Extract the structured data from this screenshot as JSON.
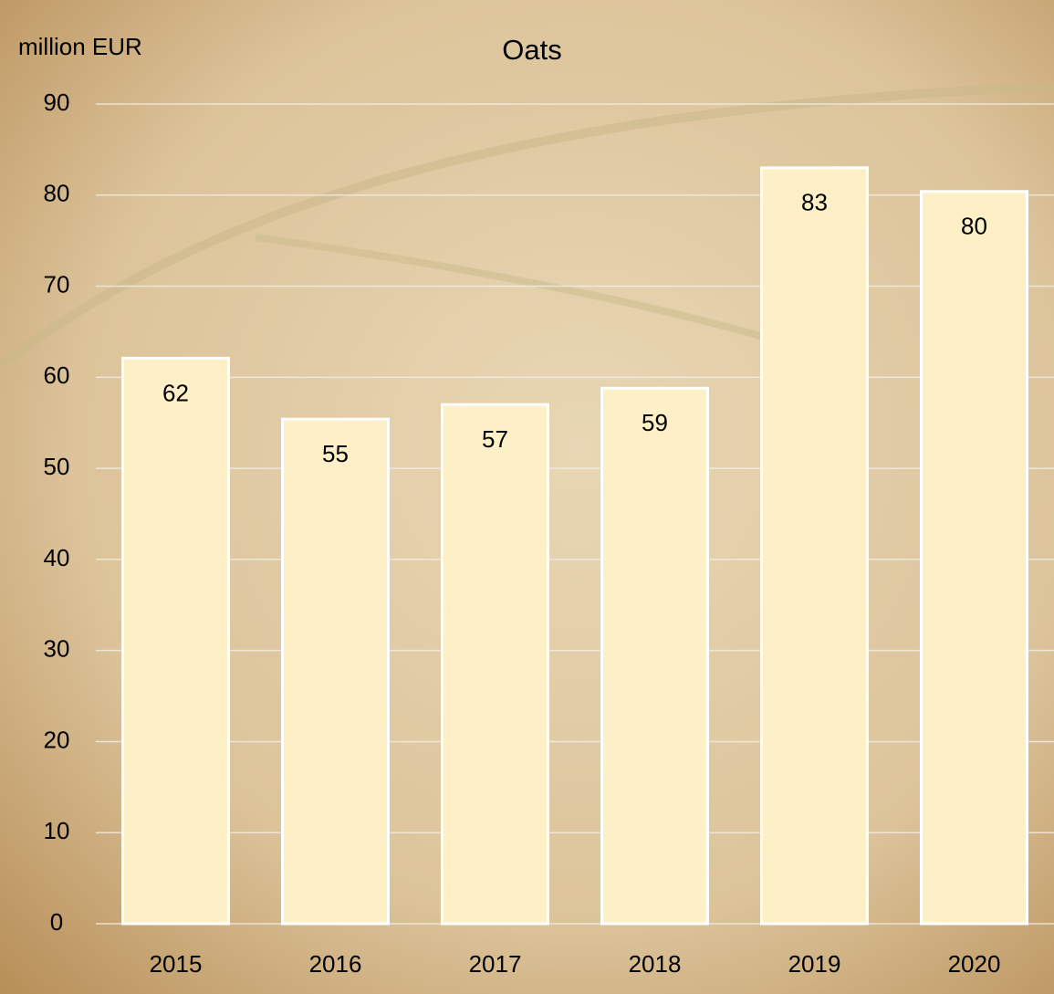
{
  "chart_data": {
    "type": "bar",
    "title": "Oats",
    "y_label": "million EUR",
    "categories": [
      "2015",
      "2016",
      "2017",
      "2018",
      "2019",
      "2020"
    ],
    "values": [
      62.1,
      55.4,
      57,
      58.8,
      83,
      80.4
    ],
    "value_labels": [
      "62",
      "55",
      "57",
      "59",
      "83",
      "80"
    ],
    "color": "#fdf0c6",
    "ylim": [
      0,
      90
    ],
    "yticks": [
      0,
      10,
      20,
      30,
      40,
      50,
      60,
      70,
      80,
      90
    ],
    "grid": true
  }
}
